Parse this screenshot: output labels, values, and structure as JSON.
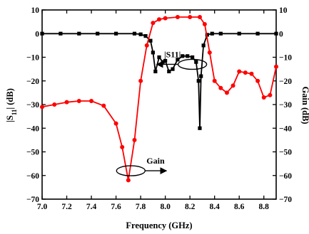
{
  "chart_data": {
    "type": "line",
    "xlabel": "Frequency (GHz)",
    "ylabel_left": "|S11| (dB)",
    "ylabel_right": "Gain (dB)",
    "xlim": [
      7.0,
      8.9
    ],
    "ylim": [
      -70,
      10
    ],
    "x_ticks": [
      7.0,
      7.2,
      7.4,
      7.6,
      7.8,
      8.0,
      8.2,
      8.4,
      8.6,
      8.8
    ],
    "y_ticks": [
      10,
      0,
      -10,
      -20,
      -30,
      -40,
      -50,
      -60,
      -70
    ],
    "grid": false,
    "annotations": [
      {
        "text": "|S11|",
        "series": "S11",
        "x": 8.22,
        "y": -13
      },
      {
        "text": "Gain",
        "series": "Gain",
        "x": 7.72,
        "y": -58
      }
    ],
    "series": [
      {
        "name": "S11",
        "axis": "left",
        "color": "#000000",
        "marker": "square",
        "x": [
          7.0,
          7.15,
          7.3,
          7.45,
          7.6,
          7.75,
          7.8,
          7.84,
          7.88,
          7.9,
          7.92,
          7.95,
          7.98,
          8.0,
          8.03,
          8.06,
          8.1,
          8.14,
          8.18,
          8.22,
          8.25,
          8.27,
          8.28,
          8.29,
          8.31,
          8.34,
          8.38,
          8.45,
          8.6,
          8.75,
          8.9
        ],
        "y": [
          0,
          0,
          0,
          0,
          0,
          0,
          -0.3,
          -1,
          -3,
          -8,
          -16,
          -10,
          -12,
          -11.5,
          -16,
          -15,
          -11,
          -9.5,
          -9.5,
          -10,
          -12,
          -20,
          -40,
          -18,
          -5,
          -0.5,
          0,
          0,
          0,
          0,
          0
        ]
      },
      {
        "name": "Gain",
        "axis": "right",
        "color": "#ff0000",
        "marker": "circle",
        "x": [
          7.0,
          7.1,
          7.2,
          7.3,
          7.4,
          7.5,
          7.6,
          7.65,
          7.7,
          7.75,
          7.8,
          7.85,
          7.9,
          7.95,
          8.0,
          8.1,
          8.2,
          8.28,
          8.32,
          8.36,
          8.4,
          8.45,
          8.5,
          8.55,
          8.6,
          8.65,
          8.7,
          8.75,
          8.8,
          8.85,
          8.9
        ],
        "y": [
          -31,
          -30,
          -29,
          -28.5,
          -28.5,
          -30.5,
          -38,
          -48,
          -62,
          -45,
          -20,
          -5,
          4.5,
          6,
          6.5,
          7,
          7,
          7,
          4,
          -8,
          -20,
          -23,
          -25,
          -22,
          -16,
          -16.5,
          -17,
          -20,
          -27,
          -26,
          -14
        ]
      }
    ]
  }
}
